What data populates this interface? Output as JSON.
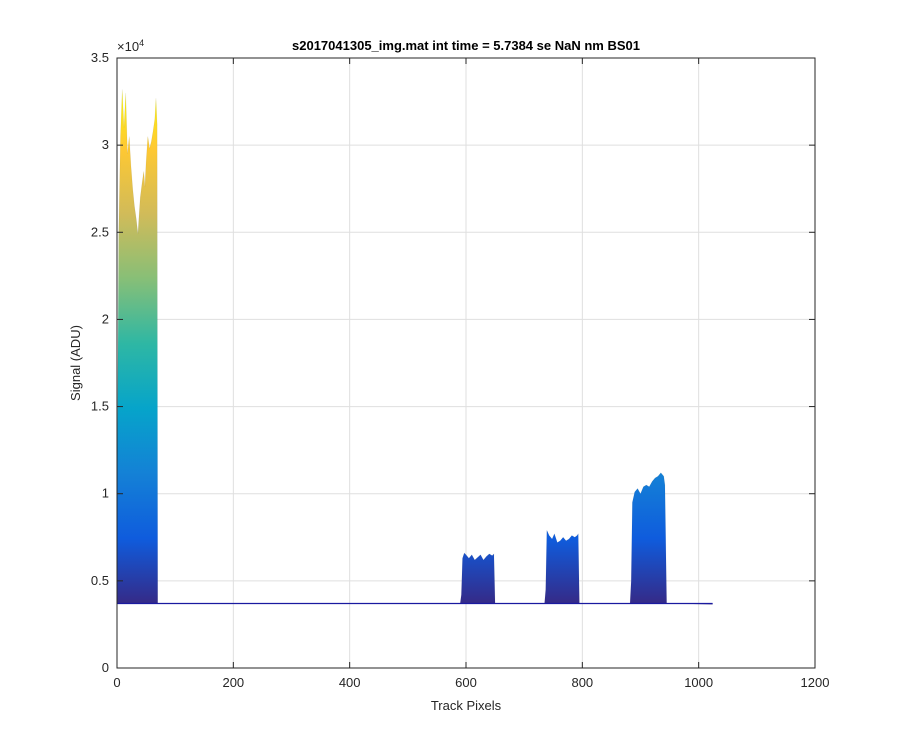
{
  "chart_data": {
    "type": "area",
    "title": "s2017041305_img.mat int time = 5.7384 se  NaN nm BS01",
    "xlabel": "Track Pixels",
    "ylabel": "Signal (ADU)",
    "xlim": [
      0,
      1200
    ],
    "ylim": [
      0,
      35000
    ],
    "x_ticks": [
      0,
      200,
      400,
      600,
      800,
      1000,
      1200
    ],
    "x_tick_labels": [
      "0",
      "200",
      "400",
      "600",
      "800",
      "1000",
      "1200"
    ],
    "y_ticks": [
      0,
      5000,
      10000,
      15000,
      20000,
      25000,
      30000,
      35000
    ],
    "y_tick_labels": [
      "0",
      "0.5",
      "1",
      "1.5",
      "2",
      "2.5",
      "3",
      "3.5"
    ],
    "y_exponent_label": "×10",
    "y_exponent_power": "4",
    "grid": true,
    "baseline": 3700,
    "colormap": [
      "#352a87",
      "#0f5cdd",
      "#1481d6",
      "#06a4ca",
      "#2eb7a4",
      "#87bf77",
      "#d1bb59",
      "#fec832",
      "#f9fb0e"
    ],
    "baseline_color": "#1a1aa0",
    "series": [
      {
        "points": [
          [
            0,
            3700
          ],
          [
            1,
            14000
          ],
          [
            3,
            25000
          ],
          [
            6,
            30500
          ],
          [
            9,
            33200
          ],
          [
            12,
            31000
          ],
          [
            15,
            33000
          ],
          [
            18,
            29500
          ],
          [
            21,
            30500
          ],
          [
            24,
            28800
          ],
          [
            27,
            27500
          ],
          [
            30,
            26500
          ],
          [
            33,
            25800
          ],
          [
            36,
            24900
          ],
          [
            38,
            26000
          ],
          [
            40,
            27000
          ],
          [
            43,
            27800
          ],
          [
            46,
            28500
          ],
          [
            48,
            27600
          ],
          [
            50,
            29000
          ],
          [
            53,
            30500
          ],
          [
            56,
            29800
          ],
          [
            59,
            30200
          ],
          [
            62,
            30800
          ],
          [
            65,
            31500
          ],
          [
            67,
            32700
          ],
          [
            69,
            31200
          ],
          [
            70,
            3700
          ]
        ]
      },
      {
        "points": [
          [
            70,
            3700
          ],
          [
            590,
            3700
          ],
          [
            592,
            4200
          ],
          [
            594,
            6300
          ],
          [
            597,
            6600
          ],
          [
            600,
            6500
          ],
          [
            605,
            6300
          ],
          [
            610,
            6500
          ],
          [
            615,
            6200
          ],
          [
            620,
            6350
          ],
          [
            625,
            6500
          ],
          [
            630,
            6200
          ],
          [
            635,
            6400
          ],
          [
            640,
            6550
          ],
          [
            645,
            6450
          ],
          [
            648,
            6550
          ],
          [
            650,
            3700
          ],
          [
            735,
            3700
          ],
          [
            737,
            4500
          ],
          [
            739,
            7900
          ],
          [
            743,
            7600
          ],
          [
            748,
            7400
          ],
          [
            752,
            7700
          ],
          [
            757,
            7200
          ],
          [
            762,
            7300
          ],
          [
            767,
            7500
          ],
          [
            772,
            7300
          ],
          [
            777,
            7400
          ],
          [
            782,
            7600
          ],
          [
            787,
            7500
          ],
          [
            791,
            7600
          ],
          [
            793,
            7700
          ],
          [
            795,
            3700
          ],
          [
            882,
            3700
          ],
          [
            884,
            5000
          ],
          [
            886,
            9500
          ],
          [
            890,
            10100
          ],
          [
            895,
            10300
          ],
          [
            900,
            10000
          ],
          [
            905,
            10400
          ],
          [
            910,
            10500
          ],
          [
            915,
            10400
          ],
          [
            920,
            10700
          ],
          [
            925,
            10900
          ],
          [
            930,
            11000
          ],
          [
            935,
            11200
          ],
          [
            940,
            11000
          ],
          [
            942,
            10500
          ],
          [
            945,
            3700
          ],
          [
            1024,
            3650
          ]
        ]
      }
    ]
  }
}
